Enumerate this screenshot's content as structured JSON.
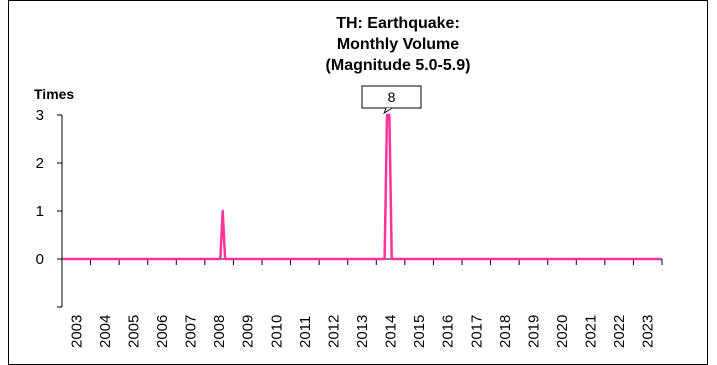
{
  "chart_data": {
    "type": "line",
    "title_lines": [
      "TH: Earthquake:",
      "Monthly Volume",
      "(Magnitude 5.0-5.9)"
    ],
    "ylabel": "Times",
    "xlabel": "",
    "x_start": "2003-01",
    "x_end": "2023-12",
    "x_tick_labels": [
      "2003",
      "2004",
      "2005",
      "2006",
      "2007",
      "2008",
      "2009",
      "2010",
      "2011",
      "2012",
      "2013",
      "2014",
      "2015",
      "2016",
      "2017",
      "2018",
      "2019",
      "2020",
      "2021",
      "2022",
      "2023"
    ],
    "y_ticks": [
      0,
      1,
      2,
      3
    ],
    "ylim": [
      -1,
      3
    ],
    "grid": false,
    "legend": "none",
    "series": [
      {
        "color": "#ff3399",
        "baseline": 0,
        "points": [
          {
            "x": "2008-08",
            "y": 1
          },
          {
            "x": "2014-05",
            "y": 3
          },
          {
            "x": "2014-06",
            "y": 3
          }
        ]
      }
    ],
    "annotations": [
      {
        "text": "8",
        "target": "2014-05"
      }
    ]
  }
}
